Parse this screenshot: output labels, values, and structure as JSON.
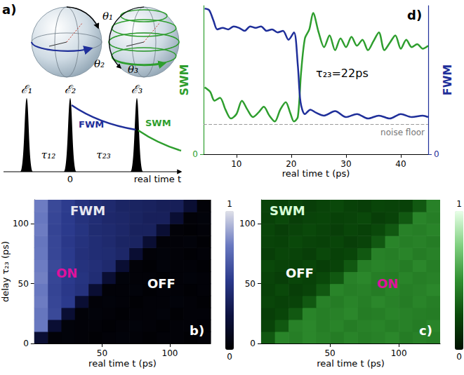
{
  "diagram": {
    "panel": "a)",
    "spheres": [
      [
        "θ₁",
        "θ₂"
      ],
      [
        "θ₃"
      ]
    ],
    "pulses": [
      "ℰ₁",
      "ℰ₂",
      "ℰ₃"
    ],
    "delays": [
      "τ₁₂",
      "τ₂₃"
    ],
    "origin": "0",
    "signals": [
      {
        "name": "FWM",
        "color": "#1f2f9a"
      },
      {
        "name": "SWM",
        "color": "#2e9e2e"
      }
    ],
    "axis_label": "real time t"
  },
  "chart_data": [
    {
      "type": "heatmap",
      "panel": "b)",
      "annotations": {
        "signal": "FWM",
        "left_state": {
          "text": "ON",
          "active": true
        },
        "right_state": {
          "text": "OFF",
          "active": false
        }
      },
      "x_label": "real time t (ps)",
      "y_label": "delay τ₂₃ (ps)",
      "xlim": [
        0,
        130
      ],
      "xticks": [
        50,
        100
      ],
      "ylim": [
        0,
        120
      ],
      "yticks": [
        0,
        50,
        100
      ],
      "x": [
        5,
        15,
        25,
        35,
        45,
        55,
        65,
        75,
        85,
        95,
        105,
        115,
        125
      ],
      "y": [
        5,
        15,
        25,
        35,
        45,
        55,
        65,
        75,
        85,
        95,
        105,
        115
      ],
      "z": [
        [
          0.2,
          0.03,
          0.04,
          0.03,
          0.02,
          0.03,
          0.04,
          0.03,
          0.02,
          0.03,
          0.03,
          0.02,
          0.03
        ],
        [
          0.75,
          0.2,
          0.04,
          0.03,
          0.03,
          0.02,
          0.03,
          0.04,
          0.03,
          0.02,
          0.03,
          0.03,
          0.02
        ],
        [
          0.74,
          0.56,
          0.2,
          0.03,
          0.04,
          0.03,
          0.02,
          0.03,
          0.03,
          0.04,
          0.02,
          0.03,
          0.03
        ],
        [
          0.76,
          0.55,
          0.5,
          0.2,
          0.03,
          0.04,
          0.03,
          0.02,
          0.03,
          0.03,
          0.04,
          0.03,
          0.02
        ],
        [
          0.75,
          0.54,
          0.49,
          0.45,
          0.2,
          0.03,
          0.03,
          0.04,
          0.02,
          0.03,
          0.03,
          0.02,
          0.03
        ],
        [
          0.77,
          0.55,
          0.5,
          0.46,
          0.42,
          0.2,
          0.04,
          0.03,
          0.03,
          0.02,
          0.03,
          0.04,
          0.03
        ],
        [
          0.76,
          0.56,
          0.51,
          0.45,
          0.43,
          0.4,
          0.2,
          0.03,
          0.02,
          0.04,
          0.03,
          0.03,
          0.02
        ],
        [
          0.75,
          0.55,
          0.5,
          0.44,
          0.42,
          0.41,
          0.38,
          0.2,
          0.03,
          0.04,
          0.03,
          0.02,
          0.03
        ],
        [
          0.74,
          0.55,
          0.49,
          0.45,
          0.42,
          0.4,
          0.37,
          0.36,
          0.2,
          0.03,
          0.03,
          0.04,
          0.02
        ],
        [
          0.76,
          0.54,
          0.5,
          0.46,
          0.41,
          0.4,
          0.38,
          0.35,
          0.35,
          0.2,
          0.03,
          0.02,
          0.03
        ],
        [
          0.75,
          0.55,
          0.5,
          0.45,
          0.42,
          0.39,
          0.38,
          0.36,
          0.34,
          0.34,
          0.2,
          0.03,
          0.04
        ],
        [
          0.76,
          0.56,
          0.51,
          0.45,
          0.42,
          0.4,
          0.37,
          0.36,
          0.35,
          0.33,
          0.33,
          0.2,
          0.03
        ]
      ],
      "colorbar": {
        "range": [
          0,
          1
        ],
        "ticks": [
          0,
          1
        ]
      }
    },
    {
      "type": "heatmap",
      "panel": "c)",
      "annotations": {
        "signal": "SWM",
        "left_state": {
          "text": "OFF",
          "active": false
        },
        "right_state": {
          "text": "ON",
          "active": true
        }
      },
      "x_label": "real time t (ps)",
      "xlim": [
        0,
        130
      ],
      "xticks": [
        50,
        100
      ],
      "ylim": [
        0,
        120
      ],
      "yticks": [
        0,
        50,
        100
      ],
      "x": [
        5,
        15,
        25,
        35,
        45,
        55,
        65,
        75,
        85,
        95,
        105,
        115,
        125
      ],
      "y": [
        5,
        15,
        25,
        35,
        45,
        55,
        65,
        75,
        85,
        95,
        105,
        115
      ],
      "z": [
        [
          0.3,
          0.46,
          0.44,
          0.47,
          0.45,
          0.43,
          0.46,
          0.44,
          0.45,
          0.47,
          0.43,
          0.45,
          0.44
        ],
        [
          0.22,
          0.3,
          0.45,
          0.47,
          0.44,
          0.46,
          0.43,
          0.45,
          0.46,
          0.44,
          0.45,
          0.43,
          0.46
        ],
        [
          0.2,
          0.23,
          0.3,
          0.46,
          0.44,
          0.45,
          0.47,
          0.43,
          0.44,
          0.46,
          0.45,
          0.44,
          0.43
        ],
        [
          0.23,
          0.21,
          0.22,
          0.3,
          0.45,
          0.43,
          0.46,
          0.44,
          0.47,
          0.45,
          0.43,
          0.46,
          0.44
        ],
        [
          0.21,
          0.24,
          0.2,
          0.22,
          0.3,
          0.46,
          0.44,
          0.45,
          0.43,
          0.46,
          0.44,
          0.45,
          0.47
        ],
        [
          0.22,
          0.2,
          0.23,
          0.21,
          0.24,
          0.3,
          0.45,
          0.47,
          0.44,
          0.43,
          0.46,
          0.44,
          0.45
        ],
        [
          0.24,
          0.22,
          0.21,
          0.23,
          0.2,
          0.22,
          0.3,
          0.44,
          0.46,
          0.45,
          0.43,
          0.47,
          0.44
        ],
        [
          0.2,
          0.23,
          0.22,
          0.2,
          0.24,
          0.21,
          0.23,
          0.3,
          0.45,
          0.44,
          0.46,
          0.43,
          0.45
        ],
        [
          0.22,
          0.21,
          0.24,
          0.22,
          0.21,
          0.23,
          0.2,
          0.22,
          0.3,
          0.46,
          0.44,
          0.45,
          0.43
        ],
        [
          0.23,
          0.2,
          0.22,
          0.24,
          0.22,
          0.2,
          0.23,
          0.21,
          0.24,
          0.3,
          0.45,
          0.44,
          0.46
        ],
        [
          0.21,
          0.24,
          0.2,
          0.22,
          0.23,
          0.21,
          0.22,
          0.24,
          0.2,
          0.22,
          0.3,
          0.46,
          0.44
        ],
        [
          0.22,
          0.21,
          0.23,
          0.2,
          0.22,
          0.24,
          0.21,
          0.2,
          0.23,
          0.22,
          0.21,
          0.3,
          0.45
        ]
      ],
      "colorbar": {
        "range": [
          0,
          1
        ],
        "ticks": [
          0,
          1
        ]
      }
    },
    {
      "type": "line",
      "panel": "d)",
      "x_label": "real time t (ps)",
      "xlim": [
        4,
        45
      ],
      "xticks": [
        10,
        20,
        30,
        40
      ],
      "ylim": [
        0,
        1
      ],
      "yticks": [
        0
      ],
      "y2lim": [
        0,
        1
      ],
      "y2ticks": [
        0
      ],
      "annotations": [
        "τ₂₃=22ps"
      ],
      "noise_floor": {
        "label": "noise floor",
        "value": 0.2
      },
      "series": [
        {
          "name": "SWM",
          "color": "#2e9e2e",
          "x": [
            4.2,
            5.2,
            6,
            7,
            8,
            9,
            10,
            11,
            12,
            13,
            14,
            15,
            16,
            17,
            18,
            19,
            19.8,
            20.5,
            21.2,
            21.8,
            22.5,
            23.3,
            24,
            25,
            26,
            27,
            28,
            29,
            30,
            31,
            32,
            33,
            34,
            35,
            36,
            37,
            38,
            39,
            40,
            41,
            42,
            43,
            44,
            45
          ],
          "values": [
            0.45,
            0.42,
            0.36,
            0.38,
            0.3,
            0.24,
            0.27,
            0.36,
            0.3,
            0.25,
            0.28,
            0.32,
            0.26,
            0.22,
            0.3,
            0.35,
            0.28,
            0.22,
            0.25,
            0.55,
            0.78,
            0.84,
            0.95,
            0.82,
            0.72,
            0.8,
            0.7,
            0.78,
            0.72,
            0.79,
            0.73,
            0.77,
            0.7,
            0.76,
            0.82,
            0.7,
            0.75,
            0.8,
            0.71,
            0.77,
            0.72,
            0.74,
            0.71,
            0.73
          ]
        },
        {
          "name": "FWM",
          "color": "#1f2f9a",
          "axis": "y2",
          "x": [
            4.2,
            5,
            5.8,
            6.5,
            7.5,
            8.5,
            9.5,
            10.5,
            11.5,
            12.5,
            13.5,
            14.5,
            15.5,
            16.5,
            17.5,
            18.5,
            19.5,
            20.5,
            21.2,
            21.7,
            22.5,
            23.5,
            24.5,
            26,
            28,
            30,
            32,
            34,
            36,
            38,
            40,
            42,
            44,
            45
          ],
          "values": [
            0.98,
            0.97,
            0.9,
            0.84,
            0.85,
            0.84,
            0.86,
            0.85,
            0.83,
            0.86,
            0.85,
            0.86,
            0.83,
            0.84,
            0.82,
            0.83,
            0.77,
            0.82,
            0.6,
            0.35,
            0.27,
            0.3,
            0.28,
            0.26,
            0.29,
            0.25,
            0.27,
            0.24,
            0.26,
            0.24,
            0.27,
            0.25,
            0.26,
            0.25
          ]
        }
      ]
    }
  ]
}
